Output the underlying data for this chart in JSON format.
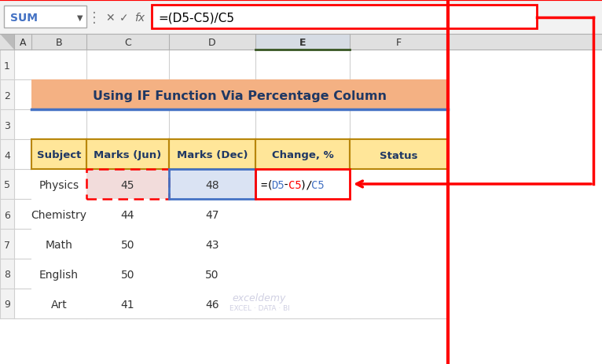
{
  "title": "Using IF Function Via Percentage Column",
  "title_color": "#1F3864",
  "title_bg": "#F4B183",
  "header_bg": "#FFE699",
  "header_color": "#1F3864",
  "header_border": "#B8860B",
  "col_headers": [
    "Subject",
    "Marks (Jun)",
    "Marks (Dec)",
    "Change, %",
    "Status"
  ],
  "rows": [
    [
      "Physics",
      "45",
      "48",
      "=(D5-C5)/C5",
      ""
    ],
    [
      "Chemistry",
      "44",
      "47",
      "",
      ""
    ],
    [
      "Math",
      "50",
      "43",
      "",
      ""
    ],
    [
      "English",
      "50",
      "50",
      "",
      ""
    ],
    [
      "Art",
      "41",
      "46",
      "",
      ""
    ]
  ],
  "formula_bar_text": "=(D5-C5)/C5",
  "formula_bar_name": "SUM",
  "col_labels": [
    "A",
    "B",
    "C",
    "D",
    "E",
    "F"
  ],
  "row_labels": [
    "1",
    "2",
    "3",
    "4",
    "5",
    "6",
    "7",
    "8",
    "9"
  ],
  "c5_bg": "#F2DCDB",
  "d5_bg": "#DAE3F3",
  "red_color": "#FF0000",
  "blue_color": "#4472C4",
  "dark_blue": "#1F3864",
  "grid_color": "#D0D0D0",
  "toolbar_bg": "#F2F2F2",
  "col_hdr_bg": "#E0E0E0",
  "e_col_hdr_bg": "#D6DCE4",
  "row_num_bg": "#F2F2F2",
  "green_border": "#375623",
  "formula_parts": [
    [
      "=(",
      "#000000"
    ],
    [
      "D5",
      "#4472C4"
    ],
    [
      "-",
      "#000000"
    ],
    [
      "C5",
      "#FF0000"
    ],
    [
      ")/",
      "#000000"
    ],
    [
      "C5",
      "#4472C4"
    ]
  ],
  "watermark1": "exceldemy",
  "watermark2": "EXCEL · DATA · BI"
}
